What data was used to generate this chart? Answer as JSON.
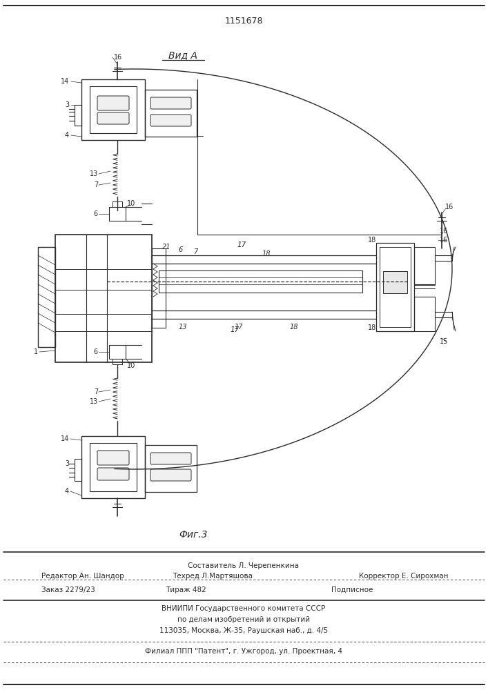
{
  "title": "1151678",
  "view_label": "Вид А",
  "fig_label": "Фиг.3",
  "background_color": "#ffffff",
  "line_color": "#2a2a2a",
  "footer": {
    "line1_left": "Редактор Ан. Шандор",
    "line1_mid": "Составитель Л. Черепенкина\nТехред Л.Мартяшова",
    "line1_right": "Корректор Е. Сирохман",
    "line2_col1": "Заказ 2279/23",
    "line2_col2": "Тираж 482",
    "line2_col3": "Подписное",
    "line3": "ВНИИПИ Государственного комитета СССР",
    "line4": "по делам изобретений и открытий",
    "line5": "113035, Москва, Ж-35, Раушская наб., д. 4/5",
    "line6": "Филиал ППП \"Патент\", г. Ужгород, ул. Проектная, 4"
  }
}
